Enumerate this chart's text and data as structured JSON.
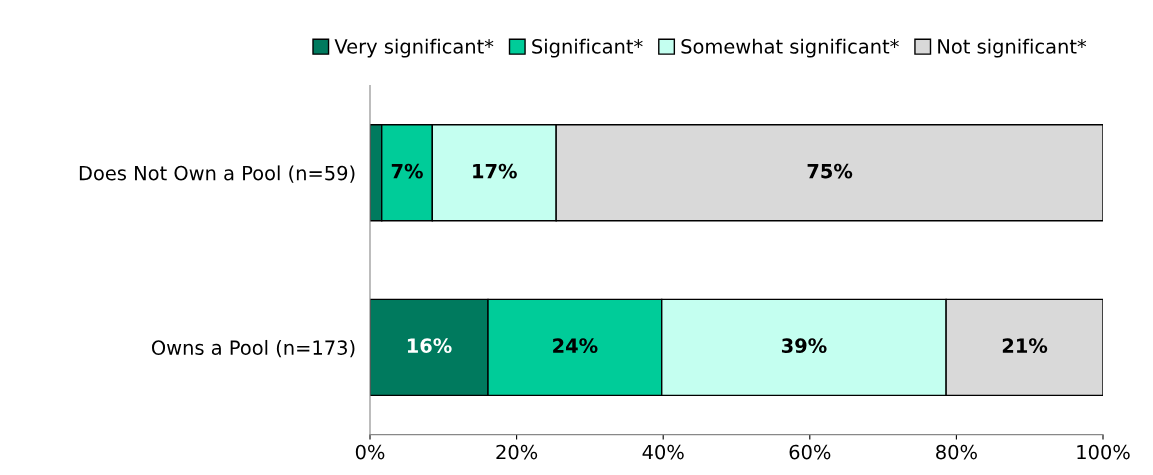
{
  "chart_data": {
    "type": "bar",
    "orientation": "horizontal",
    "stacked": true,
    "categories": [
      "Does Not Own a Pool (n=59)",
      "Owns a Pool (n=173)"
    ],
    "series": [
      {
        "name": "Very significant*",
        "color": "#007a5e",
        "values": [
          1.6,
          16.1
        ],
        "value_labels": [
          null,
          "16%"
        ]
      },
      {
        "name": "Significant*",
        "color": "#00cc99",
        "values": [
          6.9,
          23.7
        ],
        "value_labels": [
          "7%",
          "24%"
        ]
      },
      {
        "name": "Somewhat significant*",
        "color": "#c4fff0",
        "values": [
          16.9,
          38.8
        ],
        "value_labels": [
          "17%",
          "39%"
        ]
      },
      {
        "name": "Not significant*",
        "color": "#d9d9d9",
        "values": [
          74.6,
          21.4
        ],
        "value_labels": [
          "75%",
          "21%"
        ]
      }
    ],
    "xlim": [
      0,
      100
    ],
    "xticks": [
      {
        "value": 0,
        "label": "0%"
      },
      {
        "value": 20,
        "label": "20%"
      },
      {
        "value": 40,
        "label": "40%"
      },
      {
        "value": 60,
        "label": "60%"
      },
      {
        "value": 80,
        "label": "80%"
      },
      {
        "value": 100,
        "label": "100%"
      }
    ],
    "grid": false,
    "legend": "top"
  }
}
